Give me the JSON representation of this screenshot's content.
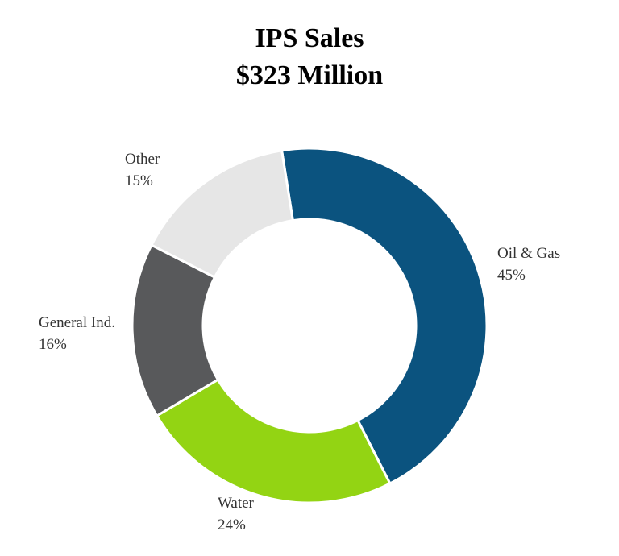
{
  "chart_data": {
    "type": "donut",
    "title": "IPS Sales",
    "subtitle": "$323 Million",
    "categories": [
      "Oil & Gas",
      "Water",
      "General Ind.",
      "Other"
    ],
    "values": [
      45,
      24,
      16,
      15
    ],
    "value_labels": [
      "45%",
      "24%",
      "16%",
      "15%"
    ],
    "colors": [
      "#0b537f",
      "#93d413",
      "#58595b",
      "#e6e6e6"
    ]
  }
}
